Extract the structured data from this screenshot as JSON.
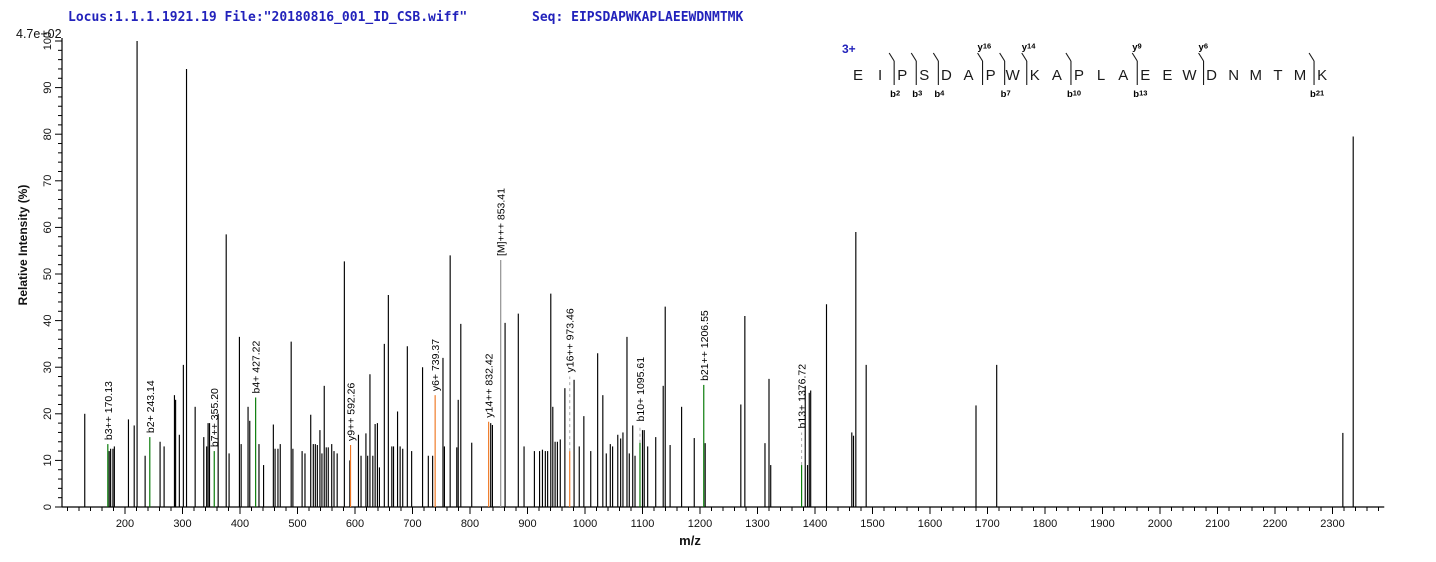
{
  "header": {
    "locus_file": "Locus:1.1.1.1921.19 File:\"20180816_001_ID_CSB.wiff\"",
    "seq": "Seq: EIPSDAPWKAPLAEEWDNMTMK"
  },
  "colors": {
    "peak": "#000000",
    "b_ion": "#007700",
    "y_ion": "#EE7621",
    "precursor": "#8c8c8c",
    "dash_leader": "#aaaaaa",
    "header_blue": "#2222bb"
  },
  "sequence_panel": {
    "charge": "3+",
    "residues": [
      "E",
      "I",
      "P",
      "S",
      "D",
      "A",
      "P",
      "W",
      "K",
      "A",
      "P",
      "L",
      "A",
      "E",
      "E",
      "W",
      "D",
      "N",
      "M",
      "T",
      "M",
      "K"
    ],
    "marks": [
      {
        "gap": 2,
        "b": "b2"
      },
      {
        "gap": 3,
        "b": "b3"
      },
      {
        "gap": 4,
        "b": "b4"
      },
      {
        "gap": 6,
        "y": "y16"
      },
      {
        "gap": 7,
        "b": "b7"
      },
      {
        "gap": 8,
        "y": "y14"
      },
      {
        "gap": 10,
        "b": "b10"
      },
      {
        "gap": 13,
        "b": "b13",
        "y": "y9"
      },
      {
        "gap": 16,
        "y": "y6"
      },
      {
        "gap": 21,
        "b": "b21"
      }
    ]
  },
  "chart_data": {
    "type": "bar",
    "variant": "centroided mass spectrum",
    "title": "",
    "xlabel": "m/z",
    "ylabel": "Relative  Intensity (%)",
    "scale_note": "4.7e+02",
    "xlim": [
      90,
      2390
    ],
    "ylim": [
      0,
      100
    ],
    "grid": false,
    "x_tick_labels": [
      200,
      300,
      400,
      500,
      600,
      700,
      800,
      900,
      1000,
      1100,
      1200,
      1300,
      1400,
      1500,
      1600,
      1700,
      1800,
      1900,
      2000,
      2100,
      2200,
      2300
    ],
    "x_minor_step": 20,
    "y_tick_labels": [
      0,
      10,
      20,
      30,
      40,
      50,
      60,
      70,
      80,
      90,
      100
    ],
    "y_minor_step": 2,
    "peaks": [
      [
        130,
        20
      ],
      [
        172.5,
        12
      ],
      [
        175,
        12.5
      ],
      [
        179,
        12.5
      ],
      [
        181.5,
        13
      ],
      [
        206,
        18.8
      ],
      [
        216,
        17.5
      ],
      [
        221,
        100
      ],
      [
        235,
        11
      ],
      [
        261,
        14
      ],
      [
        268,
        13
      ],
      [
        286,
        24
      ],
      [
        288,
        23
      ],
      [
        294.5,
        15.5
      ],
      [
        301.5,
        30.5
      ],
      [
        307,
        94
      ],
      [
        322,
        21.5
      ],
      [
        337,
        15
      ],
      [
        342,
        13
      ],
      [
        344.5,
        18
      ],
      [
        347,
        18
      ],
      [
        362,
        20
      ],
      [
        376,
        58.5
      ],
      [
        381,
        11.5
      ],
      [
        399,
        36.5
      ],
      [
        402,
        13.5
      ],
      [
        414,
        21.5
      ],
      [
        417,
        18.5
      ],
      [
        433,
        13.5
      ],
      [
        441,
        9
      ],
      [
        458,
        17.7
      ],
      [
        461,
        12.5
      ],
      [
        466,
        12.5
      ],
      [
        470,
        13.5
      ],
      [
        489,
        35.5
      ],
      [
        492,
        12.5
      ],
      [
        508,
        12
      ],
      [
        513,
        11.5
      ],
      [
        523,
        19.8
      ],
      [
        527.5,
        13.5
      ],
      [
        531,
        13.5
      ],
      [
        534.5,
        13.3
      ],
      [
        539,
        16.5
      ],
      [
        542.5,
        11.5
      ],
      [
        546.5,
        26
      ],
      [
        550,
        12.8
      ],
      [
        553.5,
        12.8
      ],
      [
        559.5,
        13.5
      ],
      [
        563.5,
        12
      ],
      [
        569,
        11.5
      ],
      [
        581.5,
        52.7
      ],
      [
        591,
        10
      ],
      [
        606,
        15.5
      ],
      [
        610.5,
        11
      ],
      [
        619,
        15.8
      ],
      [
        622,
        11
      ],
      [
        626,
        28.5
      ],
      [
        631,
        11
      ],
      [
        635,
        17.8
      ],
      [
        639,
        18
      ],
      [
        642.5,
        8.5
      ],
      [
        651,
        35
      ],
      [
        658,
        45.5
      ],
      [
        664,
        13
      ],
      [
        667,
        13
      ],
      [
        674,
        20.5
      ],
      [
        678.5,
        13
      ],
      [
        683,
        12.5
      ],
      [
        691,
        34.5
      ],
      [
        698.5,
        12
      ],
      [
        717.5,
        30
      ],
      [
        727.5,
        11
      ],
      [
        735,
        11
      ],
      [
        753,
        32
      ],
      [
        755.5,
        13
      ],
      [
        765.5,
        54
      ],
      [
        777,
        12.8
      ],
      [
        779.5,
        23
      ],
      [
        784,
        39.3
      ],
      [
        803,
        13.8
      ],
      [
        836,
        18
      ],
      [
        839,
        17.6
      ],
      [
        861,
        39.5
      ],
      [
        884,
        41.5
      ],
      [
        894,
        13
      ],
      [
        912,
        12
      ],
      [
        921,
        12
      ],
      [
        926,
        12.3
      ],
      [
        931,
        12
      ],
      [
        935,
        12
      ],
      [
        940.5,
        45.8
      ],
      [
        944,
        21.5
      ],
      [
        948,
        14
      ],
      [
        952,
        14
      ],
      [
        957,
        14.5
      ],
      [
        965,
        25.5
      ],
      [
        981,
        27.3
      ],
      [
        990,
        13
      ],
      [
        998,
        19.5
      ],
      [
        1010,
        12
      ],
      [
        1022,
        33
      ],
      [
        1031,
        24
      ],
      [
        1037,
        11.5
      ],
      [
        1044,
        13.5
      ],
      [
        1048,
        13
      ],
      [
        1057,
        15.5
      ],
      [
        1062,
        14.7
      ],
      [
        1066,
        16
      ],
      [
        1073,
        36.5
      ],
      [
        1077,
        11.5
      ],
      [
        1083,
        17.5
      ],
      [
        1087,
        11
      ],
      [
        1100,
        16.5
      ],
      [
        1103,
        16.5
      ],
      [
        1109,
        13
      ],
      [
        1123,
        15
      ],
      [
        1136,
        26
      ],
      [
        1139.5,
        43
      ],
      [
        1148,
        13.3
      ],
      [
        1168,
        21.5
      ],
      [
        1190,
        14.8
      ],
      [
        1209,
        13.7
      ],
      [
        1271,
        22
      ],
      [
        1278,
        41
      ],
      [
        1313,
        13.7
      ],
      [
        1320,
        27.5
      ],
      [
        1323,
        9
      ],
      [
        1383,
        26
      ],
      [
        1387,
        9
      ],
      [
        1390,
        24.5
      ],
      [
        1392.5,
        25
      ],
      [
        1420,
        43.5
      ],
      [
        1464,
        16
      ],
      [
        1467,
        15.3
      ],
      [
        1471,
        59
      ],
      [
        1489,
        30.5
      ],
      [
        1680,
        21.8
      ],
      [
        1716,
        30.5
      ],
      [
        2318,
        15.9
      ],
      [
        2336,
        79.5
      ]
    ],
    "annotated_peaks": [
      {
        "label": "b3++ 170.13",
        "mz": 170.13,
        "intensity": 13.5,
        "type": "b"
      },
      {
        "label": "b2+ 243.14",
        "mz": 243.14,
        "intensity": 15,
        "type": "b"
      },
      {
        "label": "b7++ 355.20",
        "mz": 355.2,
        "intensity": 12,
        "type": "b"
      },
      {
        "label": "b4+ 427.22",
        "mz": 427.22,
        "intensity": 23.5,
        "type": "b"
      },
      {
        "label": "y9++ 592.26",
        "mz": 592.26,
        "intensity": 13.3,
        "type": "y"
      },
      {
        "label": "y6+ 739.37",
        "mz": 739.37,
        "intensity": 24,
        "type": "y"
      },
      {
        "label": "y14++ 832.42",
        "mz": 832.42,
        "intensity": 18.3,
        "type": "y"
      },
      {
        "label": "[M]+++ 853.41",
        "mz": 853.41,
        "intensity": 53,
        "type": "M"
      },
      {
        "label": "y16++ 973.46",
        "mz": 973.46,
        "intensity": 12,
        "type": "y",
        "dash_to": 28
      },
      {
        "label": "b10+ 1095.61",
        "mz": 1095.61,
        "intensity": 13.8,
        "type": "b",
        "dash_to": 17.5
      },
      {
        "label": "b21++ 1206.55",
        "mz": 1206.55,
        "intensity": 26.2,
        "type": "b"
      },
      {
        "label": "b13+ 1376.72",
        "mz": 1376.72,
        "intensity": 9,
        "type": "b",
        "dash_to": 16
      }
    ]
  }
}
